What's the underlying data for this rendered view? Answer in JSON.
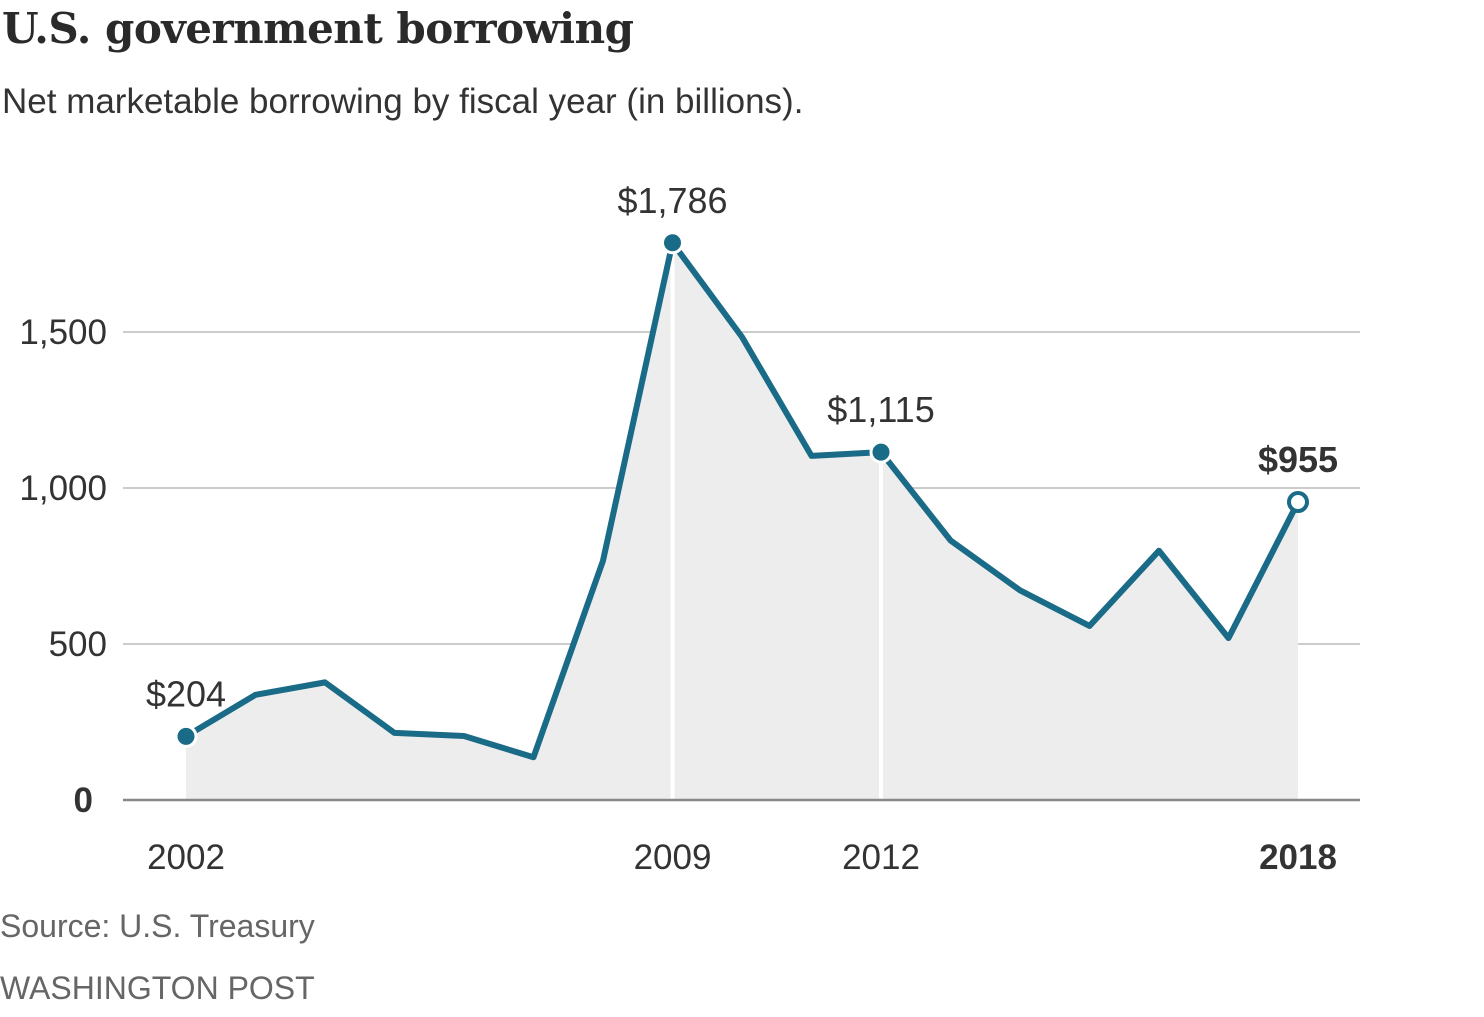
{
  "colors": {
    "line": "#1a6b87",
    "area": "#ededed",
    "grid": "#cccccc",
    "baseline": "#888888",
    "text": "#333333",
    "point_fill": "#1a6b87",
    "highlight_point_fill": "#ffffff"
  },
  "header": {
    "title": "U.S. government borrowing",
    "subtitle": "Net marketable borrowing by fiscal year (in billions)."
  },
  "footer": {
    "source": "Source: U.S. Treasury",
    "credit": "WASHINGTON POST"
  },
  "chart_data": {
    "type": "area",
    "title": "U.S. government borrowing",
    "subtitle": "Net marketable borrowing by fiscal year (in billions).",
    "xlabel": "",
    "ylabel": "",
    "x": [
      2002,
      2003,
      2004,
      2005,
      2006,
      2007,
      2008,
      2009,
      2010,
      2011,
      2012,
      2013,
      2014,
      2015,
      2016,
      2017,
      2018
    ],
    "series": [
      {
        "values": [
          204,
          337,
          377,
          215,
          205,
          137,
          767,
          1786,
          1484,
          1103,
          1115,
          832,
          672,
          558,
          799,
          519,
          955
        ]
      }
    ],
    "ylim": [
      0,
      1750
    ],
    "yticks": [
      0,
      500,
      1000,
      1500
    ],
    "ytick_labels": [
      "0",
      "500",
      "1,000",
      "1,500"
    ],
    "xticks": [
      2002,
      2009,
      2012,
      2018
    ],
    "xtick_labels": [
      "2002",
      "2009",
      "2012",
      "2018"
    ],
    "emphasized_xtick": "2018",
    "grid": true,
    "vertical_markers": [
      2009,
      2012
    ],
    "annotations": [
      {
        "x": 2002,
        "label": "$204",
        "bold": false,
        "marker": "filled"
      },
      {
        "x": 2009,
        "label": "$1,786",
        "bold": false,
        "marker": "filled"
      },
      {
        "x": 2012,
        "label": "$1,115",
        "bold": false,
        "marker": "filled"
      },
      {
        "x": 2018,
        "label": "$955",
        "bold": true,
        "marker": "open"
      }
    ]
  }
}
